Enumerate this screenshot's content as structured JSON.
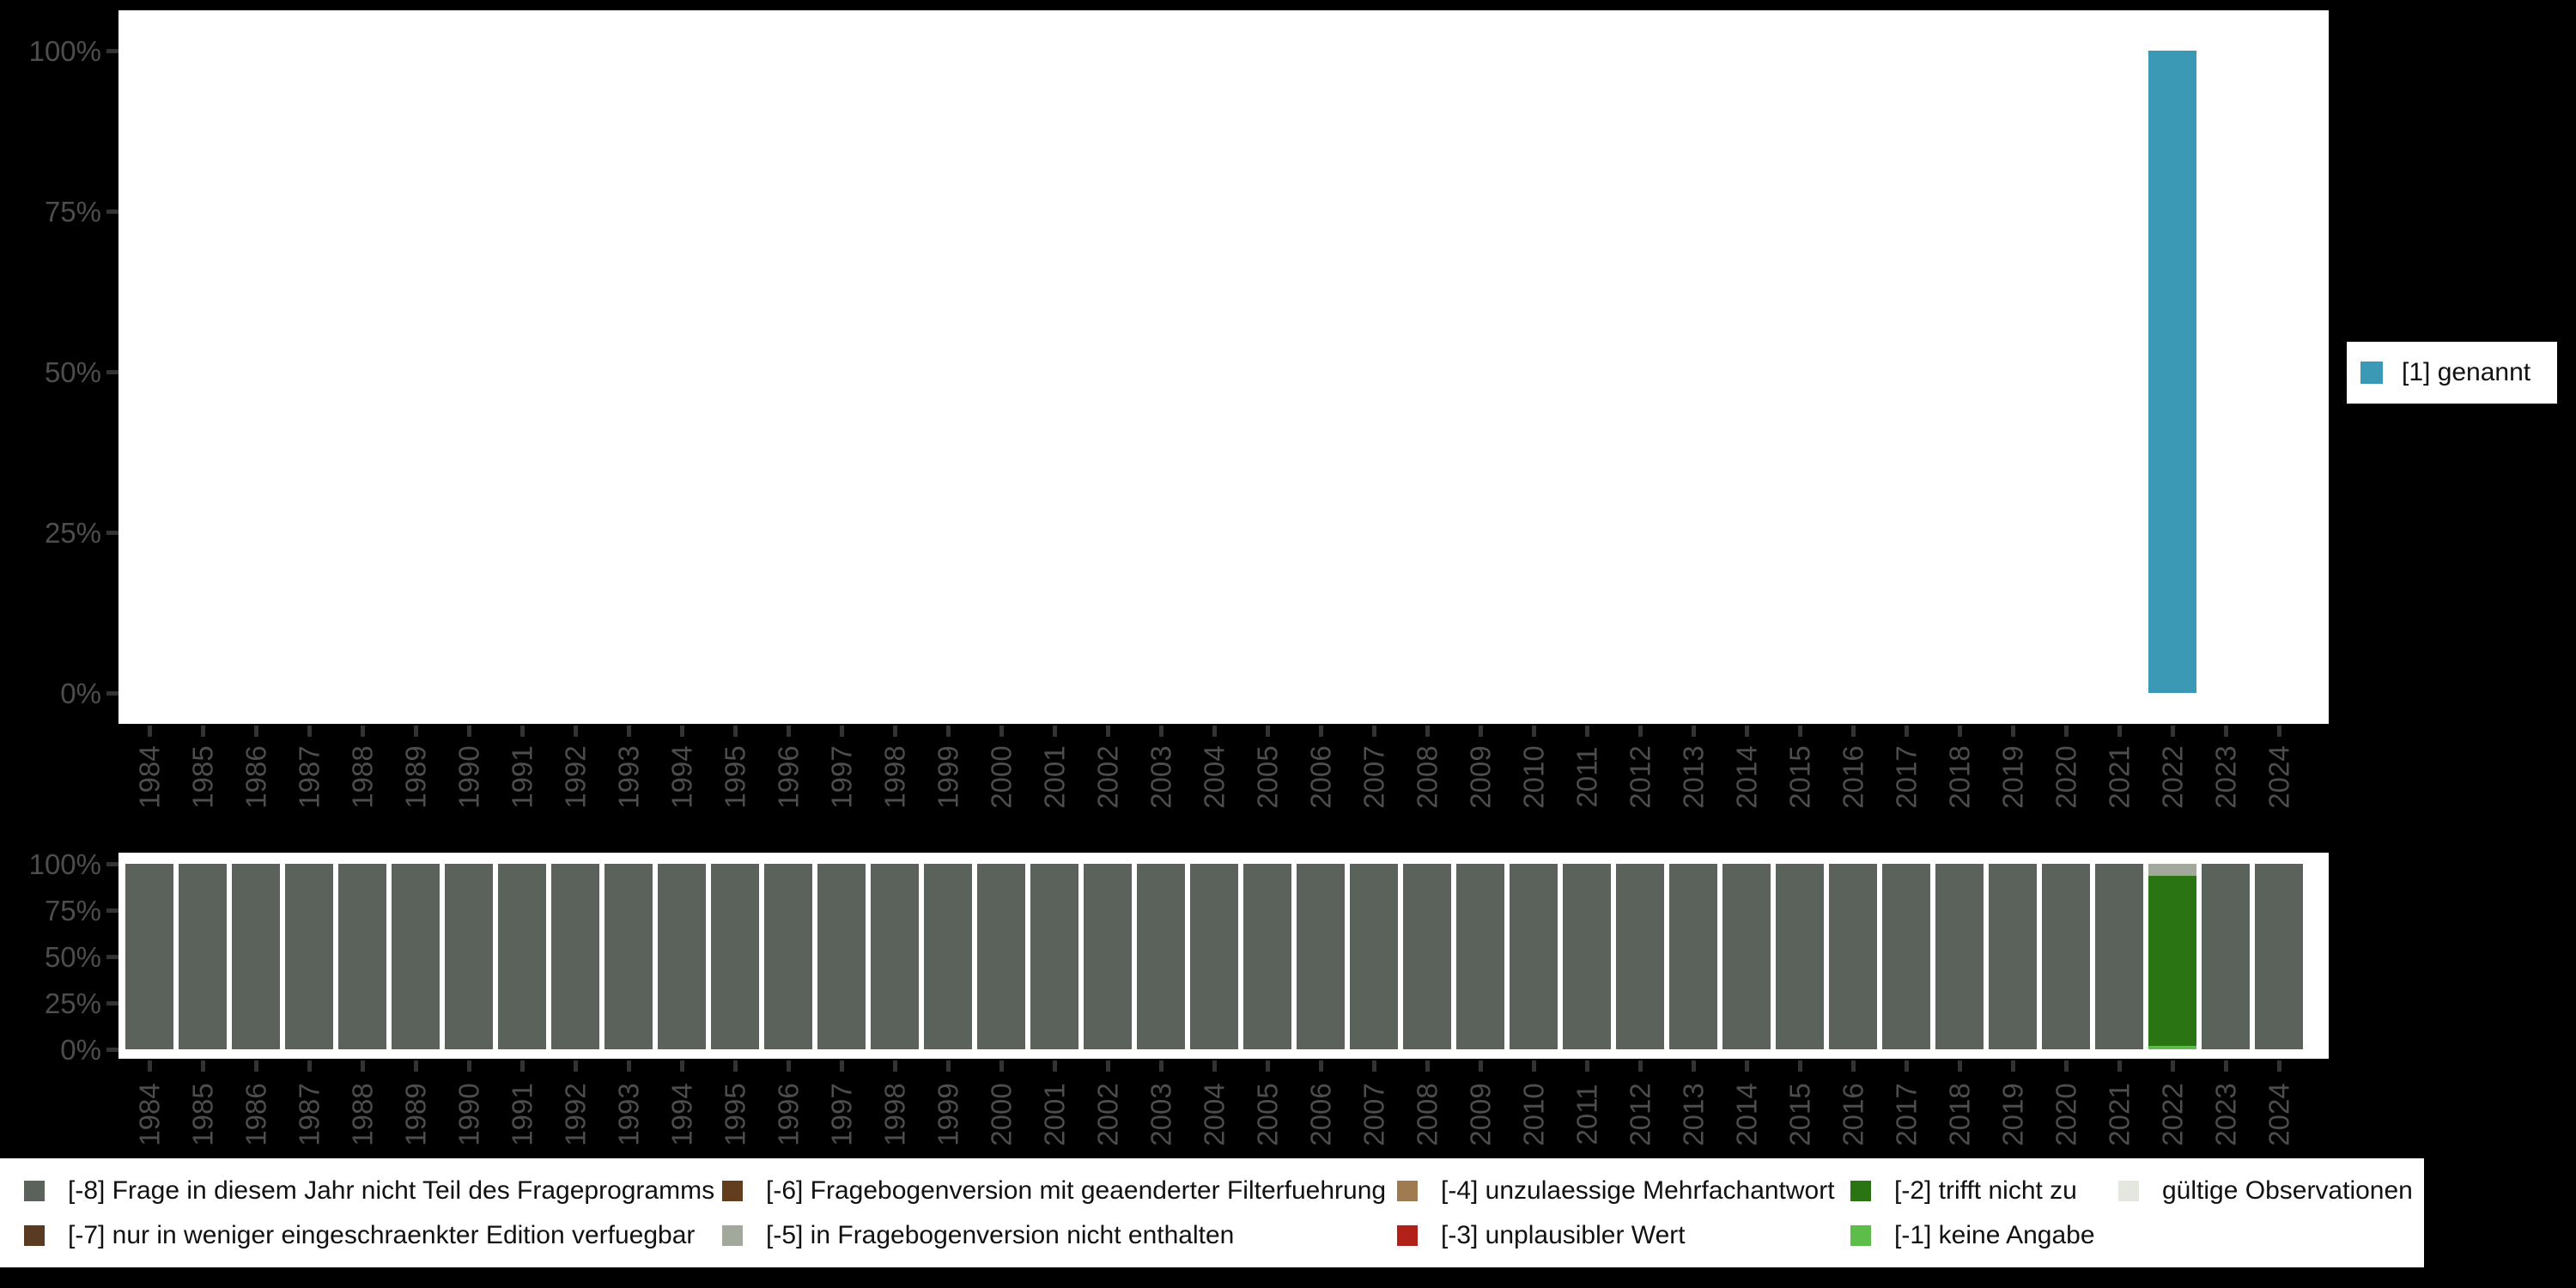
{
  "app": {
    "background": "#000000",
    "panel_background": "#ffffff"
  },
  "years": [
    1984,
    1985,
    1986,
    1987,
    1988,
    1989,
    1990,
    1991,
    1992,
    1993,
    1994,
    1995,
    1996,
    1997,
    1998,
    1999,
    2000,
    2001,
    2002,
    2003,
    2004,
    2005,
    2006,
    2007,
    2008,
    2009,
    2010,
    2011,
    2012,
    2013,
    2014,
    2015,
    2016,
    2017,
    2018,
    2019,
    2020,
    2021,
    2022,
    2023,
    2024
  ],
  "axes": {
    "y_tick_labels": [
      "100%",
      "75%",
      "50%",
      "25%",
      "0%"
    ],
    "y_tick_pcts": [
      100,
      75,
      50,
      25,
      0
    ],
    "text_color": "#4d4d4d",
    "tick_color": "#333333"
  },
  "top_chart": {
    "bar_color": "#3b99b5",
    "bars_pct": {
      "2022": 100
    }
  },
  "right_legend": {
    "label": "[1] genannt",
    "color": "#3b99b5"
  },
  "bottom_chart": {
    "default_code": "-8",
    "stacks_top_to_bottom": {
      "2022": [
        [
          "-5",
          6.5
        ],
        [
          "-2",
          91.5
        ],
        [
          "-1",
          2
        ]
      ]
    }
  },
  "code_colors": {
    "-8": "#5b625b",
    "-7": "#593a23",
    "-6": "#623e1f",
    "-5": "#a3a89d",
    "-4": "#9f7b51",
    "-3": "#b2201a",
    "-2": "#2b7414",
    "-1": "#5cbd49",
    "valid": "#e3e7e0"
  },
  "missing_legend": {
    "columns": [
      {
        "items": [
          {
            "code": "-8",
            "label": "[-8] Frage in diesem Jahr nicht Teil des Frageprogramms"
          },
          {
            "code": "-7",
            "label": "[-7] nur in weniger eingeschraenkter Edition verfuegbar"
          }
        ]
      },
      {
        "items": [
          {
            "code": "-6",
            "label": "[-6] Fragebogenversion mit geaenderter Filterfuehrung"
          },
          {
            "code": "-5",
            "label": "[-5] in Fragebogenversion nicht enthalten"
          }
        ]
      },
      {
        "items": [
          {
            "code": "-4",
            "label": "[-4] unzulaessige Mehrfachantwort"
          },
          {
            "code": "-3",
            "label": "[-3] unplausibler Wert"
          }
        ]
      },
      {
        "items": [
          {
            "code": "-2",
            "label": "[-2] trifft nicht zu"
          },
          {
            "code": "-1",
            "label": "[-1] keine Angabe"
          }
        ]
      },
      {
        "items": [
          {
            "code": "valid",
            "label": "gültige Observationen"
          }
        ]
      }
    ]
  },
  "chart_data": [
    {
      "type": "bar",
      "title": "",
      "categories": [
        1984,
        1985,
        1986,
        1987,
        1988,
        1989,
        1990,
        1991,
        1992,
        1993,
        1994,
        1995,
        1996,
        1997,
        1998,
        1999,
        2000,
        2001,
        2002,
        2003,
        2004,
        2005,
        2006,
        2007,
        2008,
        2009,
        2010,
        2011,
        2012,
        2013,
        2014,
        2015,
        2016,
        2017,
        2018,
        2019,
        2020,
        2021,
        2022,
        2023,
        2024
      ],
      "xlabel": "",
      "ylabel": "",
      "ylim": [
        0,
        100
      ],
      "ytick_labels": [
        "0%",
        "25%",
        "50%",
        "75%",
        "100%"
      ],
      "grid": false,
      "legend_position": "right-middle",
      "series": [
        {
          "name": "[1] genannt",
          "color": "#3b99b5",
          "points_pct": {
            "2022": 100
          },
          "all_other_years": null
        }
      ]
    },
    {
      "type": "stacked-bar",
      "title": "",
      "categories_ref": "chart_data.0.categories",
      "xlabel": "",
      "ylabel": "",
      "ylim": [
        0,
        100
      ],
      "ytick_labels": [
        "0%",
        "25%",
        "50%",
        "75%",
        "100%"
      ],
      "grid": false,
      "legend_position": "bottom-band",
      "series": [
        {
          "name": "[-8] Frage in diesem Jahr nicht Teil des Frageprogramms",
          "color": "#5b625b",
          "default_pct_all_years": 100,
          "overrides_pct": {
            "2022": 0
          }
        },
        {
          "name": "[-5] in Fragebogenversion nicht enthalten",
          "color": "#a3a89d",
          "default_pct_all_years": 0,
          "overrides_pct": {
            "2022": 6.5
          }
        },
        {
          "name": "[-2] trifft nicht zu",
          "color": "#2b7414",
          "default_pct_all_years": 0,
          "overrides_pct": {
            "2022": 91.5
          }
        },
        {
          "name": "[-1] keine Angabe",
          "color": "#5cbd49",
          "default_pct_all_years": 0,
          "overrides_pct": {
            "2022": 2
          }
        }
      ],
      "stack_order_top_to_bottom_2022": [
        "[-5]",
        "[-2]",
        "[-1]"
      ]
    }
  ]
}
